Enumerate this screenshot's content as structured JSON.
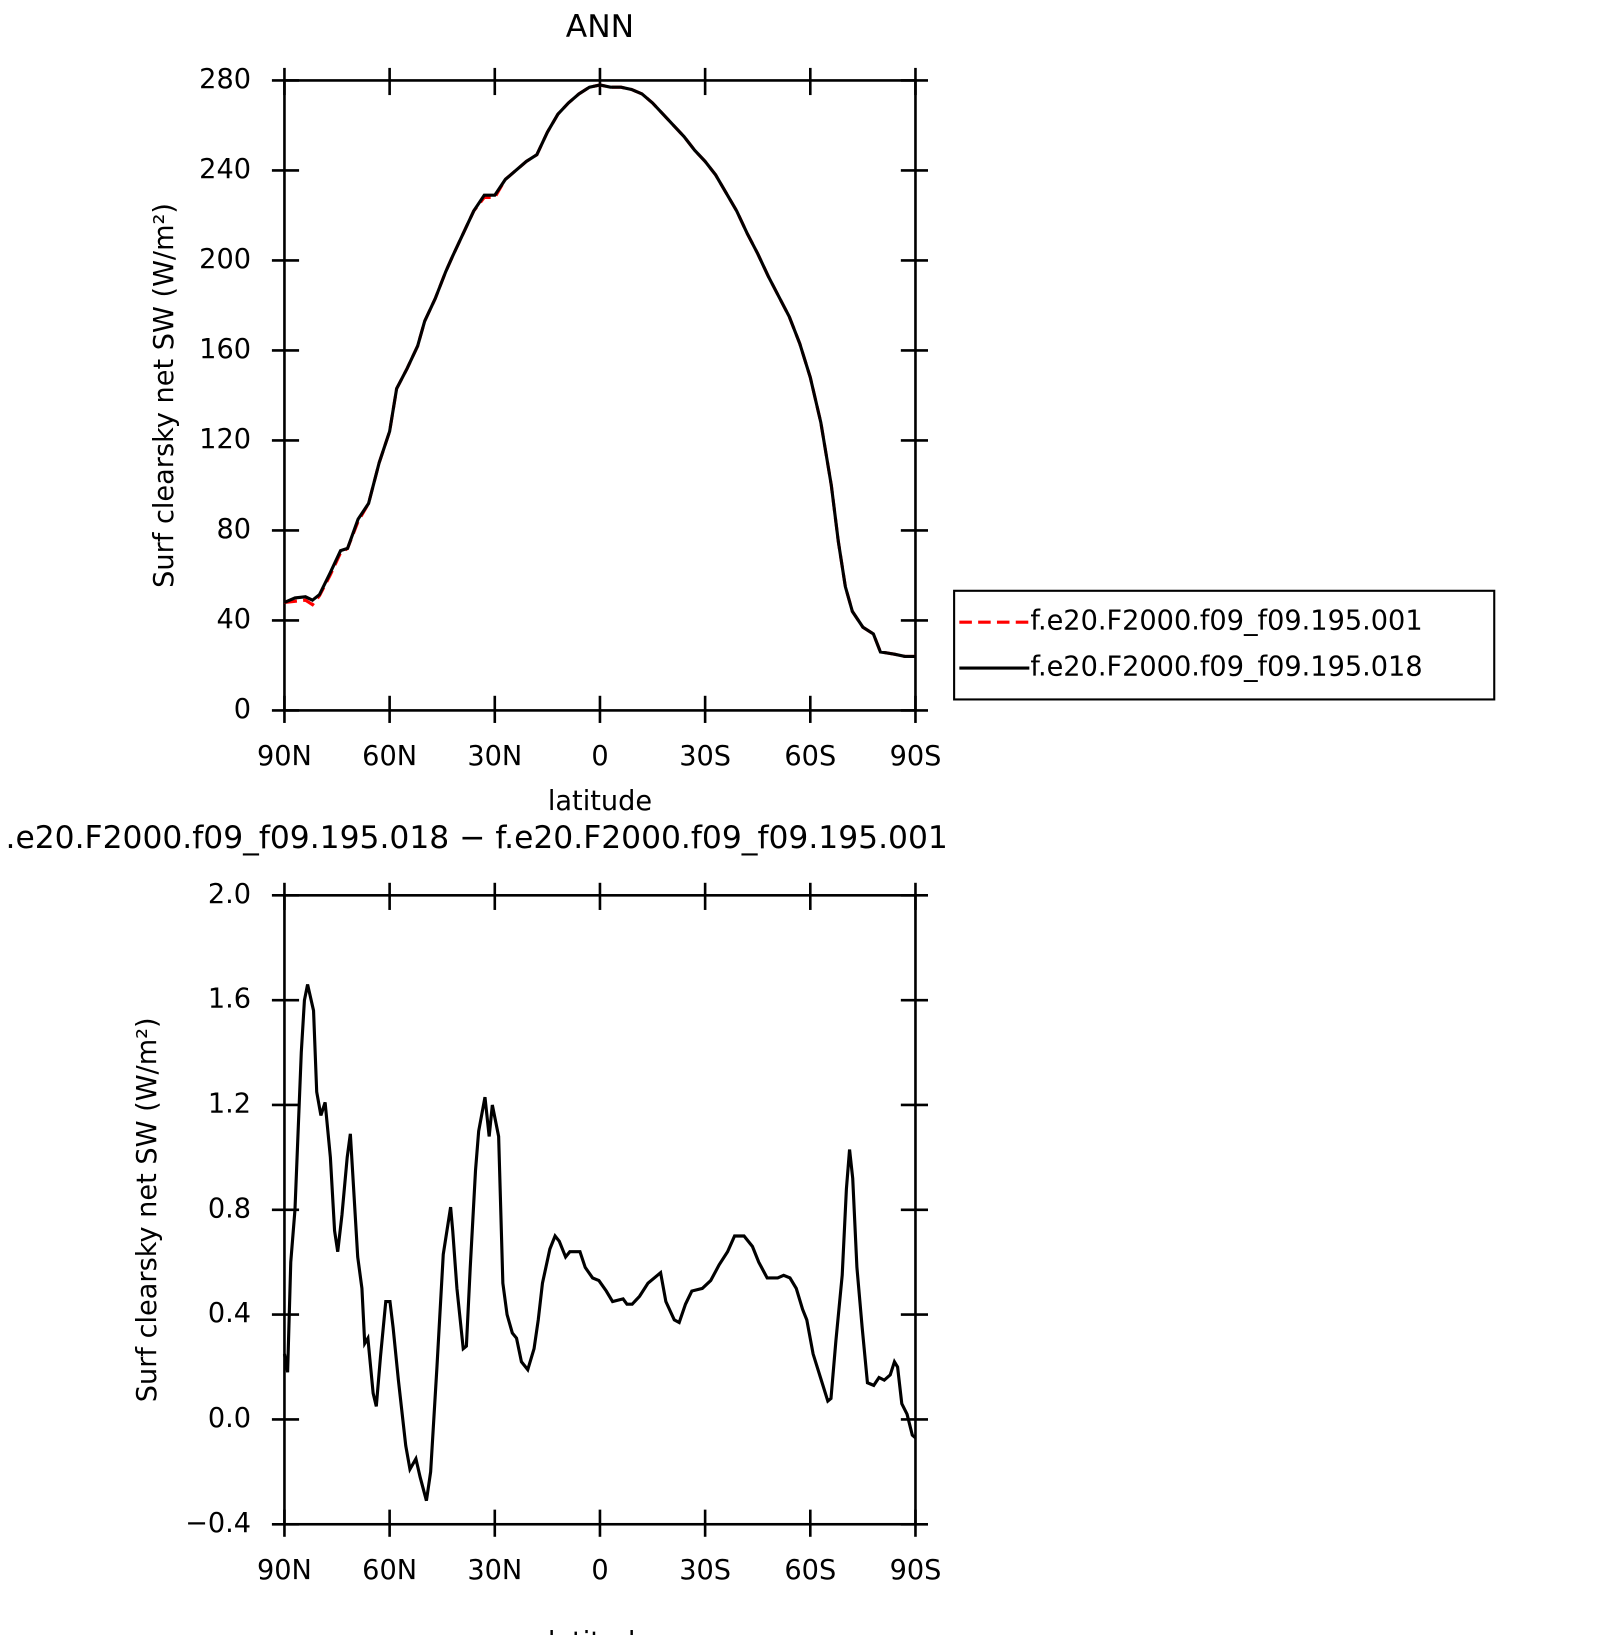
{
  "chart_data": [
    {
      "type": "line",
      "title": "ANN",
      "xlabel": "latitude",
      "ylabel": "Surf clearsky net SW (W/m²)",
      "x": [
        90,
        87,
        84,
        82,
        80,
        77,
        74,
        72,
        69,
        66,
        63,
        60,
        58,
        55,
        52,
        50,
        47,
        44,
        42,
        39,
        36,
        33,
        30,
        27,
        24,
        21,
        18,
        15,
        12,
        9,
        6,
        3,
        0,
        -3,
        -6,
        -9,
        -12,
        -15,
        -18,
        -21,
        -24,
        -27,
        -30,
        -33,
        -36,
        -39,
        -42,
        -45,
        -48,
        -51,
        -54,
        -57,
        -60,
        -63,
        -66,
        -68,
        -70,
        -72,
        -75,
        -78,
        -80,
        -84,
        -87,
        -90
      ],
      "series": [
        {
          "name": "f.e20.F2000.f09_f09.195.001",
          "color": "#ff0000",
          "line_style": "dashed",
          "values": [
            48,
            48.5,
            49,
            47,
            51,
            60,
            70,
            72,
            84,
            92,
            110,
            124,
            143,
            152,
            162,
            173,
            183,
            195,
            202,
            212,
            222,
            228,
            228,
            236,
            240,
            244,
            247,
            257,
            265,
            270,
            274,
            277,
            278,
            277,
            277,
            276,
            274,
            270,
            265,
            260,
            255,
            249,
            244,
            238,
            230,
            222,
            212,
            203,
            193,
            184,
            175,
            163,
            148,
            128,
            100,
            75,
            55,
            44,
            37,
            34,
            26,
            25,
            24,
            24
          ]
        },
        {
          "name": "f.e20.F2000.f09_f09.195.018",
          "color": "#000000",
          "line_style": "solid",
          "values": [
            48,
            50,
            50.5,
            49,
            51.5,
            61,
            71,
            72,
            85,
            92,
            110,
            124,
            143,
            152,
            162,
            173,
            183,
            195,
            202,
            212,
            222,
            229,
            229,
            236,
            240,
            244,
            247,
            257,
            265,
            270,
            274,
            277,
            278,
            277,
            277,
            276,
            274,
            270,
            265,
            260,
            255,
            249,
            244,
            238,
            230,
            222,
            212,
            203,
            193,
            184,
            175,
            163,
            148,
            128,
            100,
            75,
            55,
            44,
            37,
            34,
            26,
            25,
            24,
            24
          ]
        }
      ],
      "xlim": [
        90,
        -90
      ],
      "xticks": [
        {
          "value": 90,
          "label": "90N"
        },
        {
          "value": 60,
          "label": "60N"
        },
        {
          "value": 30,
          "label": "30N"
        },
        0,
        {
          "value": -30,
          "label": "30S"
        },
        {
          "value": -60,
          "label": "60S"
        },
        {
          "value": -90,
          "label": "90S"
        }
      ],
      "ylim": [
        0,
        280
      ],
      "yticks": [
        0,
        40,
        80,
        120,
        160,
        200,
        240,
        280
      ],
      "legend_position": "right"
    },
    {
      "type": "line",
      "title": ".e20.F2000.f09_f09.195.018 − f.e20.F2000.f09_f09.195.001",
      "xlabel": "latitude",
      "ylabel": "Surf clearsky net SW (W/m²)",
      "x": [
        90.0,
        89.1,
        88.2,
        87.0,
        85.2,
        84.3,
        83.4,
        81.7,
        80.8,
        79.6,
        78.4,
        76.9,
        75.7,
        74.8,
        73.6,
        72.1,
        71.2,
        69.1,
        67.9,
        67.1,
        66.2,
        64.7,
        63.8,
        62.6,
        61.1,
        59.9,
        59.0,
        57.5,
        55.4,
        54.2,
        52.5,
        51.3,
        49.5,
        48.3,
        46.5,
        44.7,
        42.6,
        42.0,
        40.8,
        39.0,
        38.1,
        37.0,
        35.5,
        34.6,
        32.8,
        31.6,
        30.7,
        28.9,
        27.7,
        26.5,
        25.0,
        23.8,
        22.4,
        20.6,
        18.8,
        17.6,
        16.4,
        14.3,
        12.8,
        11.6,
        9.8,
        8.6,
        5.7,
        4.2,
        2.1,
        0.3,
        -1.8,
        -3.6,
        -6.6,
        -7.7,
        -9.2,
        -11.3,
        -13.7,
        -15.5,
        -17.3,
        -18.8,
        -21.2,
        -22.6,
        -24.4,
        -26.2,
        -29.2,
        -31.6,
        -34.0,
        -36.4,
        -38.4,
        -41.1,
        -43.5,
        -45.3,
        -47.7,
        -50.7,
        -52.4,
        -54.2,
        -56.0,
        -57.8,
        -59.0,
        -60.8,
        -62.9,
        -65.0,
        -65.9,
        -67.3,
        -69.1,
        -70.3,
        -71.2,
        -72.1,
        -73.3,
        -74.8,
        -76.3,
        -78.1,
        -79.6,
        -81.1,
        -82.8,
        -84.0,
        -84.9,
        -86.1,
        -87.6,
        -89.1,
        -90.0
      ],
      "values": [
        0.25,
        0.18,
        0.6,
        0.8,
        1.4,
        1.6,
        1.66,
        1.56,
        1.25,
        1.16,
        1.21,
        1.0,
        0.72,
        0.64,
        0.78,
        1.0,
        1.09,
        0.62,
        0.5,
        0.29,
        0.31,
        0.1,
        0.05,
        0.24,
        0.45,
        0.45,
        0.35,
        0.15,
        -0.1,
        -0.19,
        -0.15,
        -0.22,
        -0.31,
        -0.2,
        0.2,
        0.63,
        0.81,
        0.72,
        0.5,
        0.27,
        0.28,
        0.58,
        0.95,
        1.1,
        1.23,
        1.08,
        1.2,
        1.08,
        0.52,
        0.4,
        0.33,
        0.31,
        0.22,
        0.19,
        0.27,
        0.38,
        0.52,
        0.65,
        0.7,
        0.68,
        0.62,
        0.64,
        0.64,
        0.58,
        0.54,
        0.53,
        0.49,
        0.45,
        0.46,
        0.44,
        0.44,
        0.47,
        0.52,
        0.54,
        0.56,
        0.45,
        0.38,
        0.37,
        0.44,
        0.49,
        0.5,
        0.53,
        0.59,
        0.64,
        0.7,
        0.7,
        0.66,
        0.6,
        0.54,
        0.54,
        0.55,
        0.54,
        0.5,
        0.42,
        0.38,
        0.25,
        0.16,
        0.07,
        0.08,
        0.3,
        0.55,
        0.88,
        1.03,
        0.92,
        0.58,
        0.35,
        0.14,
        0.13,
        0.16,
        0.15,
        0.17,
        0.22,
        0.2,
        0.06,
        0.02,
        -0.06,
        -0.07
      ],
      "color": "#000000",
      "line_style": "solid",
      "xlim": [
        90,
        -90
      ],
      "xticks": [
        {
          "value": 90,
          "label": "90N"
        },
        {
          "value": 60,
          "label": "60N"
        },
        {
          "value": 30,
          "label": "30N"
        },
        0,
        {
          "value": -30,
          "label": "30S"
        },
        {
          "value": -60,
          "label": "60S"
        },
        {
          "value": -90,
          "label": "90S"
        }
      ],
      "ylim": [
        -0.4,
        2.0
      ],
      "yticks": [
        {
          "value": -0.4,
          "label": "−0.4"
        },
        {
          "value": 0,
          "label": "0.0"
        },
        0.4,
        0.8,
        1.2,
        1.6,
        {
          "value": 2,
          "label": "2.0"
        }
      ]
    }
  ]
}
